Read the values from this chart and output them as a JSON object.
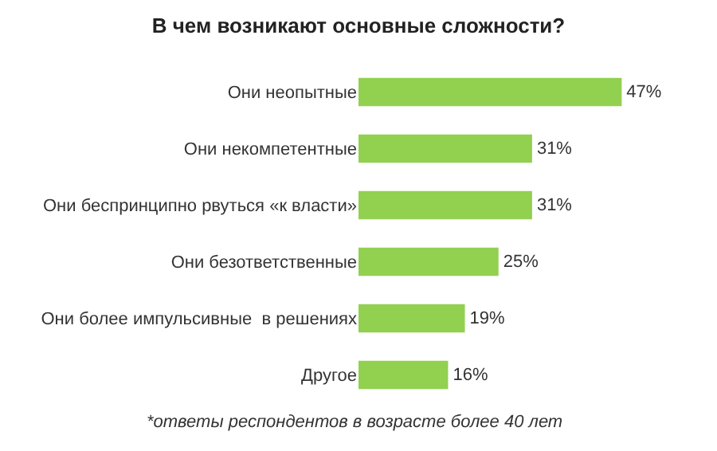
{
  "chart_data": {
    "type": "bar",
    "orientation": "horizontal",
    "title": "В чем возникают основные сложности?",
    "categories": [
      "Они неопытные",
      "Они некомпетентные",
      "Они беспринципно рвуться «к власти»",
      "Они безответственные",
      "Они более импульсивные  в решениях",
      "Другое"
    ],
    "values": [
      47,
      31,
      31,
      25,
      19,
      16
    ],
    "value_labels": [
      "47%",
      "31%",
      "31%",
      "25%",
      "19%",
      "16%"
    ],
    "color": "#92d050",
    "annotations": [
      "*ответы респондентов в возрасте более 40 лет"
    ]
  }
}
